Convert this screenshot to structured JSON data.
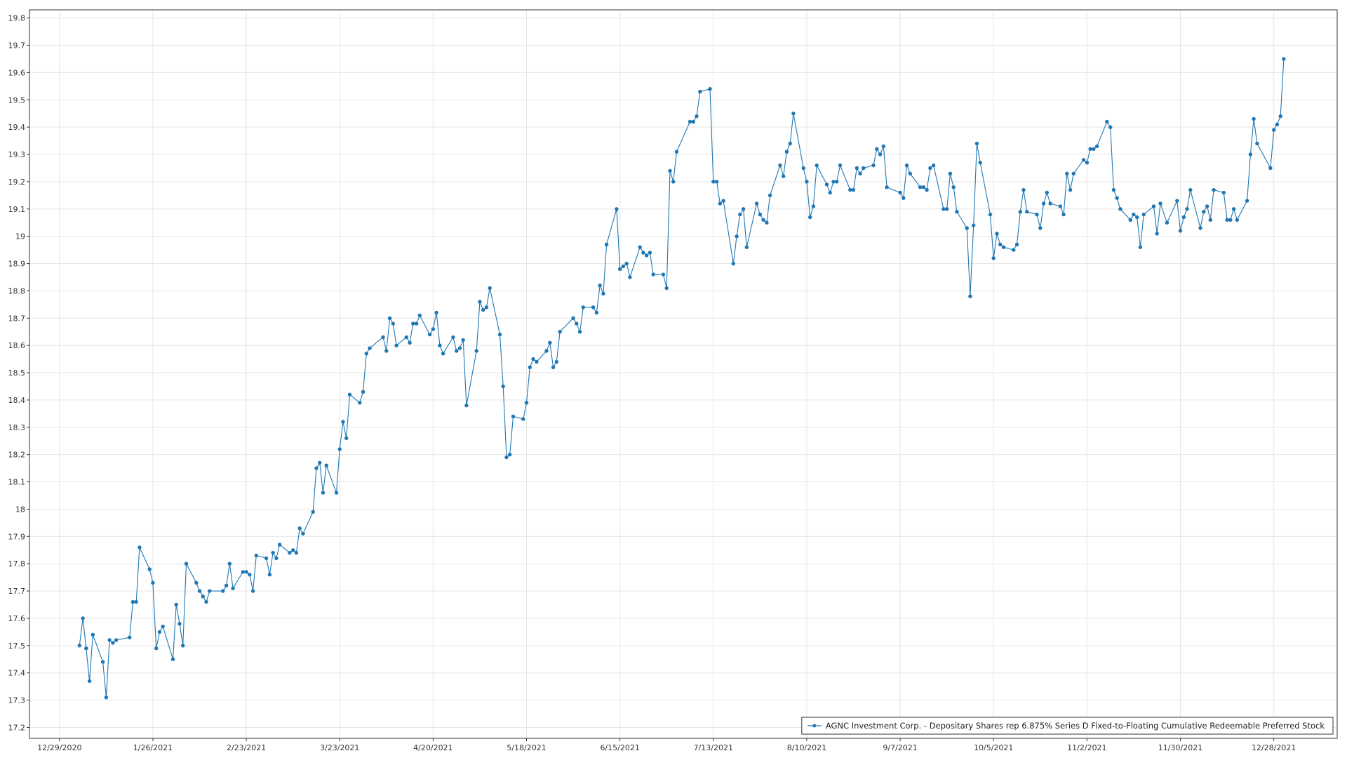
{
  "chart_data": {
    "type": "line",
    "series": [
      {
        "name": "AGNC Investment Corp. - Depositary Shares rep 6.875% Series D Fixed-to-Floating Cumulative Redeemable Preferred Stock",
        "color": "#1f77b4",
        "points": [
          [
            "2021-01-04",
            17.5
          ],
          [
            "2021-01-05",
            17.6
          ],
          [
            "2021-01-06",
            17.49
          ],
          [
            "2021-01-07",
            17.37
          ],
          [
            "2021-01-08",
            17.54
          ],
          [
            "2021-01-11",
            17.44
          ],
          [
            "2021-01-12",
            17.31
          ],
          [
            "2021-01-13",
            17.52
          ],
          [
            "2021-01-14",
            17.51
          ],
          [
            "2021-01-15",
            17.52
          ],
          [
            "2021-01-19",
            17.53
          ],
          [
            "2021-01-20",
            17.66
          ],
          [
            "2021-01-21",
            17.66
          ],
          [
            "2021-01-22",
            17.86
          ],
          [
            "2021-01-25",
            17.78
          ],
          [
            "2021-01-26",
            17.73
          ],
          [
            "2021-01-27",
            17.49
          ],
          [
            "2021-01-28",
            17.55
          ],
          [
            "2021-01-29",
            17.57
          ],
          [
            "2021-02-01",
            17.45
          ],
          [
            "2021-02-02",
            17.65
          ],
          [
            "2021-02-03",
            17.58
          ],
          [
            "2021-02-04",
            17.5
          ],
          [
            "2021-02-05",
            17.8
          ],
          [
            "2021-02-08",
            17.73
          ],
          [
            "2021-02-09",
            17.7
          ],
          [
            "2021-02-10",
            17.68
          ],
          [
            "2021-02-11",
            17.66
          ],
          [
            "2021-02-12",
            17.7
          ],
          [
            "2021-02-16",
            17.7
          ],
          [
            "2021-02-17",
            17.72
          ],
          [
            "2021-02-18",
            17.8
          ],
          [
            "2021-02-19",
            17.71
          ],
          [
            "2021-02-22",
            17.77
          ],
          [
            "2021-02-23",
            17.77
          ],
          [
            "2021-02-24",
            17.76
          ],
          [
            "2021-02-25",
            17.7
          ],
          [
            "2021-02-26",
            17.83
          ],
          [
            "2021-03-01",
            17.82
          ],
          [
            "2021-03-02",
            17.76
          ],
          [
            "2021-03-03",
            17.84
          ],
          [
            "2021-03-04",
            17.82
          ],
          [
            "2021-03-05",
            17.87
          ],
          [
            "2021-03-08",
            17.84
          ],
          [
            "2021-03-09",
            17.85
          ],
          [
            "2021-03-10",
            17.84
          ],
          [
            "2021-03-11",
            17.93
          ],
          [
            "2021-03-12",
            17.91
          ],
          [
            "2021-03-15",
            17.99
          ],
          [
            "2021-03-16",
            18.15
          ],
          [
            "2021-03-17",
            18.17
          ],
          [
            "2021-03-18",
            18.06
          ],
          [
            "2021-03-19",
            18.16
          ],
          [
            "2021-03-22",
            18.06
          ],
          [
            "2021-03-23",
            18.22
          ],
          [
            "2021-03-24",
            18.32
          ],
          [
            "2021-03-25",
            18.26
          ],
          [
            "2021-03-26",
            18.42
          ],
          [
            "2021-03-29",
            18.39
          ],
          [
            "2021-03-30",
            18.43
          ],
          [
            "2021-03-31",
            18.57
          ],
          [
            "2021-04-01",
            18.59
          ],
          [
            "2021-04-05",
            18.63
          ],
          [
            "2021-04-06",
            18.58
          ],
          [
            "2021-04-07",
            18.7
          ],
          [
            "2021-04-08",
            18.68
          ],
          [
            "2021-04-09",
            18.6
          ],
          [
            "2021-04-12",
            18.63
          ],
          [
            "2021-04-13",
            18.61
          ],
          [
            "2021-04-14",
            18.68
          ],
          [
            "2021-04-15",
            18.68
          ],
          [
            "2021-04-16",
            18.71
          ],
          [
            "2021-04-19",
            18.64
          ],
          [
            "2021-04-20",
            18.66
          ],
          [
            "2021-04-21",
            18.72
          ],
          [
            "2021-04-22",
            18.6
          ],
          [
            "2021-04-23",
            18.57
          ],
          [
            "2021-04-26",
            18.63
          ],
          [
            "2021-04-27",
            18.58
          ],
          [
            "2021-04-28",
            18.59
          ],
          [
            "2021-04-29",
            18.62
          ],
          [
            "2021-04-30",
            18.38
          ],
          [
            "2021-05-03",
            18.58
          ],
          [
            "2021-05-04",
            18.76
          ],
          [
            "2021-05-05",
            18.73
          ],
          [
            "2021-05-06",
            18.74
          ],
          [
            "2021-05-07",
            18.81
          ],
          [
            "2021-05-10",
            18.64
          ],
          [
            "2021-05-11",
            18.45
          ],
          [
            "2021-05-12",
            18.19
          ],
          [
            "2021-05-13",
            18.2
          ],
          [
            "2021-05-14",
            18.34
          ],
          [
            "2021-05-17",
            18.33
          ],
          [
            "2021-05-18",
            18.39
          ],
          [
            "2021-05-19",
            18.52
          ],
          [
            "2021-05-20",
            18.55
          ],
          [
            "2021-05-21",
            18.54
          ],
          [
            "2021-05-24",
            18.58
          ],
          [
            "2021-05-25",
            18.61
          ],
          [
            "2021-05-26",
            18.52
          ],
          [
            "2021-05-27",
            18.54
          ],
          [
            "2021-05-28",
            18.65
          ],
          [
            "2021-06-01",
            18.7
          ],
          [
            "2021-06-02",
            18.68
          ],
          [
            "2021-06-03",
            18.65
          ],
          [
            "2021-06-04",
            18.74
          ],
          [
            "2021-06-07",
            18.74
          ],
          [
            "2021-06-08",
            18.72
          ],
          [
            "2021-06-09",
            18.82
          ],
          [
            "2021-06-10",
            18.79
          ],
          [
            "2021-06-11",
            18.97
          ],
          [
            "2021-06-14",
            19.1
          ],
          [
            "2021-06-15",
            18.88
          ],
          [
            "2021-06-16",
            18.89
          ],
          [
            "2021-06-17",
            18.9
          ],
          [
            "2021-06-18",
            18.85
          ],
          [
            "2021-06-21",
            18.96
          ],
          [
            "2021-06-22",
            18.94
          ],
          [
            "2021-06-23",
            18.93
          ],
          [
            "2021-06-24",
            18.94
          ],
          [
            "2021-06-25",
            18.86
          ],
          [
            "2021-06-28",
            18.86
          ],
          [
            "2021-06-29",
            18.81
          ],
          [
            "2021-06-30",
            19.24
          ],
          [
            "2021-07-01",
            19.2
          ],
          [
            "2021-07-02",
            19.31
          ],
          [
            "2021-07-06",
            19.42
          ],
          [
            "2021-07-07",
            19.42
          ],
          [
            "2021-07-08",
            19.44
          ],
          [
            "2021-07-09",
            19.53
          ],
          [
            "2021-07-12",
            19.54
          ],
          [
            "2021-07-13",
            19.2
          ],
          [
            "2021-07-14",
            19.2
          ],
          [
            "2021-07-15",
            19.12
          ],
          [
            "2021-07-16",
            19.13
          ],
          [
            "2021-07-19",
            18.9
          ],
          [
            "2021-07-20",
            19.0
          ],
          [
            "2021-07-21",
            19.08
          ],
          [
            "2021-07-22",
            19.1
          ],
          [
            "2021-07-23",
            18.96
          ],
          [
            "2021-07-26",
            19.12
          ],
          [
            "2021-07-27",
            19.08
          ],
          [
            "2021-07-28",
            19.06
          ],
          [
            "2021-07-29",
            19.05
          ],
          [
            "2021-07-30",
            19.15
          ],
          [
            "2021-08-02",
            19.26
          ],
          [
            "2021-08-03",
            19.22
          ],
          [
            "2021-08-04",
            19.31
          ],
          [
            "2021-08-05",
            19.34
          ],
          [
            "2021-08-06",
            19.45
          ],
          [
            "2021-08-09",
            19.25
          ],
          [
            "2021-08-10",
            19.2
          ],
          [
            "2021-08-11",
            19.07
          ],
          [
            "2021-08-12",
            19.11
          ],
          [
            "2021-08-13",
            19.26
          ],
          [
            "2021-08-16",
            19.19
          ],
          [
            "2021-08-17",
            19.16
          ],
          [
            "2021-08-18",
            19.2
          ],
          [
            "2021-08-19",
            19.2
          ],
          [
            "2021-08-20",
            19.26
          ],
          [
            "2021-08-23",
            19.17
          ],
          [
            "2021-08-24",
            19.17
          ],
          [
            "2021-08-25",
            19.25
          ],
          [
            "2021-08-26",
            19.23
          ],
          [
            "2021-08-27",
            19.25
          ],
          [
            "2021-08-30",
            19.26
          ],
          [
            "2021-08-31",
            19.32
          ],
          [
            "2021-09-01",
            19.3
          ],
          [
            "2021-09-02",
            19.33
          ],
          [
            "2021-09-03",
            19.18
          ],
          [
            "2021-09-07",
            19.16
          ],
          [
            "2021-09-08",
            19.14
          ],
          [
            "2021-09-09",
            19.26
          ],
          [
            "2021-09-10",
            19.23
          ],
          [
            "2021-09-13",
            19.18
          ],
          [
            "2021-09-14",
            19.18
          ],
          [
            "2021-09-15",
            19.17
          ],
          [
            "2021-09-16",
            19.25
          ],
          [
            "2021-09-17",
            19.26
          ],
          [
            "2021-09-20",
            19.1
          ],
          [
            "2021-09-21",
            19.1
          ],
          [
            "2021-09-22",
            19.23
          ],
          [
            "2021-09-23",
            19.18
          ],
          [
            "2021-09-24",
            19.09
          ],
          [
            "2021-09-27",
            19.03
          ],
          [
            "2021-09-28",
            18.78
          ],
          [
            "2021-09-29",
            19.04
          ],
          [
            "2021-09-30",
            19.34
          ],
          [
            "2021-10-01",
            19.27
          ],
          [
            "2021-10-04",
            19.08
          ],
          [
            "2021-10-05",
            18.92
          ],
          [
            "2021-10-06",
            19.01
          ],
          [
            "2021-10-07",
            18.97
          ],
          [
            "2021-10-08",
            18.96
          ],
          [
            "2021-10-11",
            18.95
          ],
          [
            "2021-10-12",
            18.97
          ],
          [
            "2021-10-13",
            19.09
          ],
          [
            "2021-10-14",
            19.17
          ],
          [
            "2021-10-15",
            19.09
          ],
          [
            "2021-10-18",
            19.08
          ],
          [
            "2021-10-19",
            19.03
          ],
          [
            "2021-10-20",
            19.12
          ],
          [
            "2021-10-21",
            19.16
          ],
          [
            "2021-10-22",
            19.12
          ],
          [
            "2021-10-25",
            19.11
          ],
          [
            "2021-10-26",
            19.08
          ],
          [
            "2021-10-27",
            19.23
          ],
          [
            "2021-10-28",
            19.17
          ],
          [
            "2021-10-29",
            19.23
          ],
          [
            "2021-11-01",
            19.28
          ],
          [
            "2021-11-02",
            19.27
          ],
          [
            "2021-11-03",
            19.32
          ],
          [
            "2021-11-04",
            19.32
          ],
          [
            "2021-11-05",
            19.33
          ],
          [
            "2021-11-08",
            19.42
          ],
          [
            "2021-11-09",
            19.4
          ],
          [
            "2021-11-10",
            19.17
          ],
          [
            "2021-11-11",
            19.14
          ],
          [
            "2021-11-12",
            19.1
          ],
          [
            "2021-11-15",
            19.06
          ],
          [
            "2021-11-16",
            19.08
          ],
          [
            "2021-11-17",
            19.07
          ],
          [
            "2021-11-18",
            18.96
          ],
          [
            "2021-11-19",
            19.08
          ],
          [
            "2021-11-22",
            19.11
          ],
          [
            "2021-11-23",
            19.01
          ],
          [
            "2021-11-24",
            19.12
          ],
          [
            "2021-11-26",
            19.05
          ],
          [
            "2021-11-29",
            19.13
          ],
          [
            "2021-11-30",
            19.02
          ],
          [
            "2021-12-01",
            19.07
          ],
          [
            "2021-12-02",
            19.1
          ],
          [
            "2021-12-03",
            19.17
          ],
          [
            "2021-12-06",
            19.03
          ],
          [
            "2021-12-07",
            19.09
          ],
          [
            "2021-12-08",
            19.11
          ],
          [
            "2021-12-09",
            19.06
          ],
          [
            "2021-12-10",
            19.17
          ],
          [
            "2021-12-13",
            19.16
          ],
          [
            "2021-12-14",
            19.06
          ],
          [
            "2021-12-15",
            19.06
          ],
          [
            "2021-12-16",
            19.1
          ],
          [
            "2021-12-17",
            19.06
          ],
          [
            "2021-12-20",
            19.13
          ],
          [
            "2021-12-21",
            19.3
          ],
          [
            "2021-12-22",
            19.43
          ],
          [
            "2021-12-23",
            19.34
          ],
          [
            "2021-12-27",
            19.25
          ],
          [
            "2021-12-28",
            19.39
          ],
          [
            "2021-12-29",
            19.41
          ],
          [
            "2021-12-30",
            19.44
          ],
          [
            "2021-12-31",
            19.65
          ]
        ]
      }
    ],
    "x_ticks": [
      "12/29/2020",
      "1/26/2021",
      "2/23/2021",
      "3/23/2021",
      "4/20/2021",
      "5/18/2021",
      "6/15/2021",
      "7/13/2021",
      "8/10/2021",
      "9/7/2021",
      "10/5/2021",
      "11/2/2021",
      "11/30/2021",
      "12/28/2021"
    ],
    "y_ticks": [
      "17.2",
      "17.3",
      "17.4",
      "17.5",
      "17.6",
      "17.7",
      "17.8",
      "17.9",
      "18",
      "18.1",
      "18.2",
      "18.3",
      "18.4",
      "18.5",
      "18.6",
      "18.7",
      "18.8",
      "18.9",
      "19",
      "19.1",
      "19.2",
      "19.3",
      "19.4",
      "19.5",
      "19.6",
      "19.7",
      "19.8"
    ],
    "xlim": [
      "2020-12-20",
      "2022-01-16"
    ],
    "ylim": [
      17.16,
      19.83
    ],
    "grid": true,
    "legend_position": "bottom-right",
    "colors": {
      "series": "#1f77b4",
      "grid": "#e6e6e6",
      "axis": "#333333"
    }
  }
}
